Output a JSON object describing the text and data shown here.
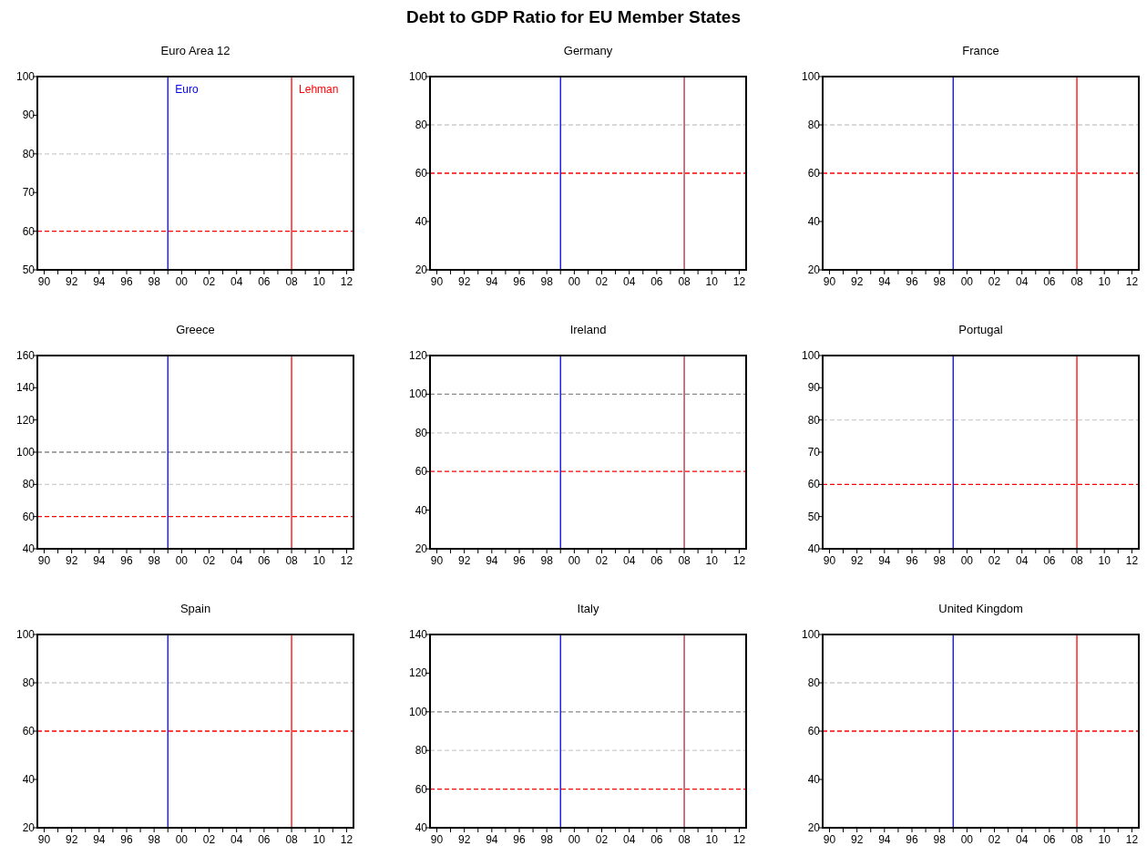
{
  "chart_data": [
    {
      "type": "line",
      "title": "Euro Area 12",
      "annotations": [
        "Debt to GDP Ratio for EU Member States"
      ],
      "xlim": [
        "1990-01-01",
        "2013-01-01"
      ],
      "xticks": [
        {
          "value": "1990-07-01",
          "label": "90"
        },
        {
          "value": "1991-07-01",
          "label": null
        },
        {
          "value": "1992-07-01",
          "label": "92"
        },
        {
          "value": "1993-07-01",
          "label": null
        },
        {
          "value": "1994-07-01",
          "label": "94"
        },
        {
          "value": "1995-07-01",
          "label": null
        },
        {
          "value": "1996-07-01",
          "label": "96"
        },
        {
          "value": "1997-07-01",
          "label": null
        },
        {
          "value": "1998-07-01",
          "label": "98"
        },
        {
          "value": "1999-07-01",
          "label": null
        },
        {
          "value": "2000-07-01",
          "label": "00"
        },
        {
          "value": "2001-07-01",
          "label": null
        },
        {
          "value": "2002-07-01",
          "label": "02"
        },
        {
          "value": "2003-07-01",
          "label": null
        },
        {
          "value": "2004-07-01",
          "label": "04"
        },
        {
          "value": "2005-07-01",
          "label": null
        },
        {
          "value": "2006-07-01",
          "label": "06"
        },
        {
          "value": "2007-07-01",
          "label": null
        },
        {
          "value": "2008-07-01",
          "label": "08"
        },
        {
          "value": "2009-07-01",
          "label": null
        },
        {
          "value": "2010-07-01",
          "label": "10"
        },
        {
          "value": "2011-07-01",
          "label": null
        },
        {
          "value": "2012-07-01",
          "label": "12"
        }
      ],
      "ylim": [
        50,
        100
      ],
      "yticks": [
        50,
        60,
        70,
        80,
        90,
        100
      ],
      "ref_lines": [
        {
          "axis": "y",
          "value": 60,
          "color": "#ff0000",
          "line_style": "dashed"
        },
        {
          "axis": "y",
          "value": 80,
          "color": "#cccccc",
          "line_style": "dashed"
        },
        {
          "axis": "x",
          "value": "1999-07-01",
          "label": "Euro",
          "color": "#0000ff",
          "line_style": "solid"
        },
        {
          "axis": "x",
          "value": "2008-07-01",
          "label": "Lehman",
          "color": "#ff0000",
          "line_style": "solid"
        }
      ]
    },
    {
      "type": "line",
      "title": "Germany",
      "xlim": [
        "1990-01-01",
        "2013-01-01"
      ],
      "xticks": [
        {
          "value": "1990-07-01",
          "label": "90"
        },
        {
          "value": "1991-07-01",
          "label": null
        },
        {
          "value": "1992-07-01",
          "label": "92"
        },
        {
          "value": "1993-07-01",
          "label": null
        },
        {
          "value": "1994-07-01",
          "label": "94"
        },
        {
          "value": "1995-07-01",
          "label": null
        },
        {
          "value": "1996-07-01",
          "label": "96"
        },
        {
          "value": "1997-07-01",
          "label": null
        },
        {
          "value": "1998-07-01",
          "label": "98"
        },
        {
          "value": "1999-07-01",
          "label": null
        },
        {
          "value": "2000-07-01",
          "label": "00"
        },
        {
          "value": "2001-07-01",
          "label": null
        },
        {
          "value": "2002-07-01",
          "label": "02"
        },
        {
          "value": "2003-07-01",
          "label": null
        },
        {
          "value": "2004-07-01",
          "label": "04"
        },
        {
          "value": "2005-07-01",
          "label": null
        },
        {
          "value": "2006-07-01",
          "label": "06"
        },
        {
          "value": "2007-07-01",
          "label": null
        },
        {
          "value": "2008-07-01",
          "label": "08"
        },
        {
          "value": "2009-07-01",
          "label": null
        },
        {
          "value": "2010-07-01",
          "label": "10"
        },
        {
          "value": "2011-07-01",
          "label": null
        },
        {
          "value": "2012-07-01",
          "label": "12"
        }
      ],
      "ylim": [
        20,
        100
      ],
      "yticks": [
        20,
        40,
        60,
        80,
        100
      ],
      "ref_lines": [
        {
          "axis": "y",
          "value": 60,
          "color": "#ff0000",
          "line_style": "dashed"
        },
        {
          "axis": "y",
          "value": 80,
          "color": "#cccccc",
          "line_style": "dashed"
        },
        {
          "axis": "x",
          "value": "1999-07-01",
          "color": "#0000ff",
          "line_style": "solid"
        },
        {
          "axis": "x",
          "value": "2008-07-01",
          "color": "#993344",
          "line_style": "solid"
        }
      ]
    },
    {
      "type": "line",
      "title": "France",
      "xlim": [
        "1990-01-01",
        "2013-01-01"
      ],
      "xticks": [
        {
          "value": "1990-07-01",
          "label": "90"
        },
        {
          "value": "1991-07-01",
          "label": null
        },
        {
          "value": "1992-07-01",
          "label": "92"
        },
        {
          "value": "1993-07-01",
          "label": null
        },
        {
          "value": "1994-07-01",
          "label": "94"
        },
        {
          "value": "1995-07-01",
          "label": null
        },
        {
          "value": "1996-07-01",
          "label": "96"
        },
        {
          "value": "1997-07-01",
          "label": null
        },
        {
          "value": "1998-07-01",
          "label": "98"
        },
        {
          "value": "1999-07-01",
          "label": null
        },
        {
          "value": "2000-07-01",
          "label": "00"
        },
        {
          "value": "2001-07-01",
          "label": null
        },
        {
          "value": "2002-07-01",
          "label": "02"
        },
        {
          "value": "2003-07-01",
          "label": null
        },
        {
          "value": "2004-07-01",
          "label": "04"
        },
        {
          "value": "2005-07-01",
          "label": null
        },
        {
          "value": "2006-07-01",
          "label": "06"
        },
        {
          "value": "2007-07-01",
          "label": null
        },
        {
          "value": "2008-07-01",
          "label": "08"
        },
        {
          "value": "2009-07-01",
          "label": null
        },
        {
          "value": "2010-07-01",
          "label": "10"
        },
        {
          "value": "2011-07-01",
          "label": null
        },
        {
          "value": "2012-07-01",
          "label": "12"
        }
      ],
      "ylim": [
        20,
        100
      ],
      "yticks": [
        20,
        40,
        60,
        80,
        100
      ],
      "ref_lines": [
        {
          "axis": "y",
          "value": 60,
          "color": "#ff0000",
          "line_style": "dashed"
        },
        {
          "axis": "y",
          "value": 80,
          "color": "#cccccc",
          "line_style": "dashed"
        },
        {
          "axis": "x",
          "value": "1999-07-01",
          "color": "#0000ff",
          "line_style": "solid"
        },
        {
          "axis": "x",
          "value": "2008-07-01",
          "color": "#ff0000",
          "line_style": "solid"
        }
      ]
    },
    {
      "type": "line",
      "title": "Greece",
      "xlim": [
        "1990-01-01",
        "2013-01-01"
      ],
      "xticks": [
        {
          "value": "1990-07-01",
          "label": "90"
        },
        {
          "value": "1991-07-01",
          "label": null
        },
        {
          "value": "1992-07-01",
          "label": "92"
        },
        {
          "value": "1993-07-01",
          "label": null
        },
        {
          "value": "1994-07-01",
          "label": "94"
        },
        {
          "value": "1995-07-01",
          "label": null
        },
        {
          "value": "1996-07-01",
          "label": "96"
        },
        {
          "value": "1997-07-01",
          "label": null
        },
        {
          "value": "1998-07-01",
          "label": "98"
        },
        {
          "value": "1999-07-01",
          "label": null
        },
        {
          "value": "2000-07-01",
          "label": "00"
        },
        {
          "value": "2001-07-01",
          "label": null
        },
        {
          "value": "2002-07-01",
          "label": "02"
        },
        {
          "value": "2003-07-01",
          "label": null
        },
        {
          "value": "2004-07-01",
          "label": "04"
        },
        {
          "value": "2005-07-01",
          "label": null
        },
        {
          "value": "2006-07-01",
          "label": "06"
        },
        {
          "value": "2007-07-01",
          "label": null
        },
        {
          "value": "2008-07-01",
          "label": "08"
        },
        {
          "value": "2009-07-01",
          "label": null
        },
        {
          "value": "2010-07-01",
          "label": "10"
        },
        {
          "value": "2011-07-01",
          "label": null
        },
        {
          "value": "2012-07-01",
          "label": "12"
        }
      ],
      "ylim": [
        40,
        160
      ],
      "yticks": [
        40,
        60,
        80,
        100,
        120,
        140,
        160
      ],
      "ref_lines": [
        {
          "axis": "y",
          "value": 60,
          "color": "#ff0000",
          "line_style": "dashed"
        },
        {
          "axis": "y",
          "value": 80,
          "color": "#cccccc",
          "line_style": "dashed"
        },
        {
          "axis": "y",
          "value": 100,
          "color": "#888888",
          "line_style": "dashed"
        },
        {
          "axis": "x",
          "value": "1999-07-01",
          "color": "#0000ff",
          "line_style": "solid"
        },
        {
          "axis": "x",
          "value": "2008-07-01",
          "color": "#ff0000",
          "line_style": "solid"
        }
      ]
    },
    {
      "type": "line",
      "title": "Ireland",
      "xlim": [
        "1990-01-01",
        "2013-01-01"
      ],
      "xticks": [
        {
          "value": "1990-07-01",
          "label": "90"
        },
        {
          "value": "1991-07-01",
          "label": null
        },
        {
          "value": "1992-07-01",
          "label": "92"
        },
        {
          "value": "1993-07-01",
          "label": null
        },
        {
          "value": "1994-07-01",
          "label": "94"
        },
        {
          "value": "1995-07-01",
          "label": null
        },
        {
          "value": "1996-07-01",
          "label": "96"
        },
        {
          "value": "1997-07-01",
          "label": null
        },
        {
          "value": "1998-07-01",
          "label": "98"
        },
        {
          "value": "1999-07-01",
          "label": null
        },
        {
          "value": "2000-07-01",
          "label": "00"
        },
        {
          "value": "2001-07-01",
          "label": null
        },
        {
          "value": "2002-07-01",
          "label": "02"
        },
        {
          "value": "2003-07-01",
          "label": null
        },
        {
          "value": "2004-07-01",
          "label": "04"
        },
        {
          "value": "2005-07-01",
          "label": null
        },
        {
          "value": "2006-07-01",
          "label": "06"
        },
        {
          "value": "2007-07-01",
          "label": null
        },
        {
          "value": "2008-07-01",
          "label": "08"
        },
        {
          "value": "2009-07-01",
          "label": null
        },
        {
          "value": "2010-07-01",
          "label": "10"
        },
        {
          "value": "2011-07-01",
          "label": null
        },
        {
          "value": "2012-07-01",
          "label": "12"
        }
      ],
      "ylim": [
        20,
        120
      ],
      "yticks": [
        20,
        40,
        60,
        80,
        100,
        120
      ],
      "ref_lines": [
        {
          "axis": "y",
          "value": 60,
          "color": "#ff0000",
          "line_style": "dashed"
        },
        {
          "axis": "y",
          "value": 80,
          "color": "#cccccc",
          "line_style": "dashed"
        },
        {
          "axis": "y",
          "value": 100,
          "color": "#888888",
          "line_style": "dashed"
        },
        {
          "axis": "x",
          "value": "1999-07-01",
          "color": "#0000ff",
          "line_style": "solid"
        },
        {
          "axis": "x",
          "value": "2008-07-01",
          "color": "#993344",
          "line_style": "solid"
        }
      ]
    },
    {
      "type": "line",
      "title": "Portugal",
      "xlim": [
        "1990-01-01",
        "2013-01-01"
      ],
      "xticks": [
        {
          "value": "1990-07-01",
          "label": "90"
        },
        {
          "value": "1991-07-01",
          "label": null
        },
        {
          "value": "1992-07-01",
          "label": "92"
        },
        {
          "value": "1993-07-01",
          "label": null
        },
        {
          "value": "1994-07-01",
          "label": "94"
        },
        {
          "value": "1995-07-01",
          "label": null
        },
        {
          "value": "1996-07-01",
          "label": "96"
        },
        {
          "value": "1997-07-01",
          "label": null
        },
        {
          "value": "1998-07-01",
          "label": "98"
        },
        {
          "value": "1999-07-01",
          "label": null
        },
        {
          "value": "2000-07-01",
          "label": "00"
        },
        {
          "value": "2001-07-01",
          "label": null
        },
        {
          "value": "2002-07-01",
          "label": "02"
        },
        {
          "value": "2003-07-01",
          "label": null
        },
        {
          "value": "2004-07-01",
          "label": "04"
        },
        {
          "value": "2005-07-01",
          "label": null
        },
        {
          "value": "2006-07-01",
          "label": "06"
        },
        {
          "value": "2007-07-01",
          "label": null
        },
        {
          "value": "2008-07-01",
          "label": "08"
        },
        {
          "value": "2009-07-01",
          "label": null
        },
        {
          "value": "2010-07-01",
          "label": "10"
        },
        {
          "value": "2011-07-01",
          "label": null
        },
        {
          "value": "2012-07-01",
          "label": "12"
        }
      ],
      "ylim": [
        40,
        100
      ],
      "yticks": [
        40,
        50,
        60,
        70,
        80,
        90,
        100
      ],
      "ref_lines": [
        {
          "axis": "y",
          "value": 60,
          "color": "#ff0000",
          "line_style": "dashed"
        },
        {
          "axis": "y",
          "value": 80,
          "color": "#cccccc",
          "line_style": "dashed"
        },
        {
          "axis": "x",
          "value": "1999-07-01",
          "color": "#0000ff",
          "line_style": "solid"
        },
        {
          "axis": "x",
          "value": "2008-07-01",
          "color": "#ff0000",
          "line_style": "solid"
        }
      ]
    },
    {
      "type": "line",
      "title": "Spain",
      "xlim": [
        "1990-01-01",
        "2013-01-01"
      ],
      "xticks": [
        {
          "value": "1990-07-01",
          "label": "90"
        },
        {
          "value": "1991-07-01",
          "label": null
        },
        {
          "value": "1992-07-01",
          "label": "92"
        },
        {
          "value": "1993-07-01",
          "label": null
        },
        {
          "value": "1994-07-01",
          "label": "94"
        },
        {
          "value": "1995-07-01",
          "label": null
        },
        {
          "value": "1996-07-01",
          "label": "96"
        },
        {
          "value": "1997-07-01",
          "label": null
        },
        {
          "value": "1998-07-01",
          "label": "98"
        },
        {
          "value": "1999-07-01",
          "label": null
        },
        {
          "value": "2000-07-01",
          "label": "00"
        },
        {
          "value": "2001-07-01",
          "label": null
        },
        {
          "value": "2002-07-01",
          "label": "02"
        },
        {
          "value": "2003-07-01",
          "label": null
        },
        {
          "value": "2004-07-01",
          "label": "04"
        },
        {
          "value": "2005-07-01",
          "label": null
        },
        {
          "value": "2006-07-01",
          "label": "06"
        },
        {
          "value": "2007-07-01",
          "label": null
        },
        {
          "value": "2008-07-01",
          "label": "08"
        },
        {
          "value": "2009-07-01",
          "label": null
        },
        {
          "value": "2010-07-01",
          "label": "10"
        },
        {
          "value": "2011-07-01",
          "label": null
        },
        {
          "value": "2012-07-01",
          "label": "12"
        }
      ],
      "ylim": [
        20,
        100
      ],
      "yticks": [
        20,
        40,
        60,
        80,
        100
      ],
      "ref_lines": [
        {
          "axis": "y",
          "value": 60,
          "color": "#ff0000",
          "line_style": "dashed"
        },
        {
          "axis": "y",
          "value": 80,
          "color": "#cccccc",
          "line_style": "dashed"
        },
        {
          "axis": "x",
          "value": "1999-07-01",
          "color": "#0000ff",
          "line_style": "solid"
        },
        {
          "axis": "x",
          "value": "2008-07-01",
          "color": "#ff0000",
          "line_style": "solid"
        }
      ]
    },
    {
      "type": "line",
      "title": "Italy",
      "xlim": [
        "1990-01-01",
        "2013-01-01"
      ],
      "xticks": [
        {
          "value": "1990-07-01",
          "label": "90"
        },
        {
          "value": "1991-07-01",
          "label": null
        },
        {
          "value": "1992-07-01",
          "label": "92"
        },
        {
          "value": "1993-07-01",
          "label": null
        },
        {
          "value": "1994-07-01",
          "label": "94"
        },
        {
          "value": "1995-07-01",
          "label": null
        },
        {
          "value": "1996-07-01",
          "label": "96"
        },
        {
          "value": "1997-07-01",
          "label": null
        },
        {
          "value": "1998-07-01",
          "label": "98"
        },
        {
          "value": "1999-07-01",
          "label": null
        },
        {
          "value": "2000-07-01",
          "label": "00"
        },
        {
          "value": "2001-07-01",
          "label": null
        },
        {
          "value": "2002-07-01",
          "label": "02"
        },
        {
          "value": "2003-07-01",
          "label": null
        },
        {
          "value": "2004-07-01",
          "label": "04"
        },
        {
          "value": "2005-07-01",
          "label": null
        },
        {
          "value": "2006-07-01",
          "label": "06"
        },
        {
          "value": "2007-07-01",
          "label": null
        },
        {
          "value": "2008-07-01",
          "label": "08"
        },
        {
          "value": "2009-07-01",
          "label": null
        },
        {
          "value": "2010-07-01",
          "label": "10"
        },
        {
          "value": "2011-07-01",
          "label": null
        },
        {
          "value": "2012-07-01",
          "label": "12"
        }
      ],
      "ylim": [
        40,
        140
      ],
      "yticks": [
        40,
        60,
        80,
        100,
        120,
        140
      ],
      "ref_lines": [
        {
          "axis": "y",
          "value": 60,
          "color": "#ff0000",
          "line_style": "dashed"
        },
        {
          "axis": "y",
          "value": 80,
          "color": "#cccccc",
          "line_style": "dashed"
        },
        {
          "axis": "y",
          "value": 100,
          "color": "#888888",
          "line_style": "dashed"
        },
        {
          "axis": "x",
          "value": "1999-07-01",
          "color": "#0000ff",
          "line_style": "solid"
        },
        {
          "axis": "x",
          "value": "2008-07-01",
          "color": "#993344",
          "line_style": "solid"
        }
      ]
    },
    {
      "type": "line",
      "title": "United  Kingdom",
      "xlim": [
        "1990-01-01",
        "2013-01-01"
      ],
      "xticks": [
        {
          "value": "1990-07-01",
          "label": "90"
        },
        {
          "value": "1991-07-01",
          "label": null
        },
        {
          "value": "1992-07-01",
          "label": "92"
        },
        {
          "value": "1993-07-01",
          "label": null
        },
        {
          "value": "1994-07-01",
          "label": "94"
        },
        {
          "value": "1995-07-01",
          "label": null
        },
        {
          "value": "1996-07-01",
          "label": "96"
        },
        {
          "value": "1997-07-01",
          "label": null
        },
        {
          "value": "1998-07-01",
          "label": "98"
        },
        {
          "value": "1999-07-01",
          "label": null
        },
        {
          "value": "2000-07-01",
          "label": "00"
        },
        {
          "value": "2001-07-01",
          "label": null
        },
        {
          "value": "2002-07-01",
          "label": "02"
        },
        {
          "value": "2003-07-01",
          "label": null
        },
        {
          "value": "2004-07-01",
          "label": "04"
        },
        {
          "value": "2005-07-01",
          "label": null
        },
        {
          "value": "2006-07-01",
          "label": "06"
        },
        {
          "value": "2007-07-01",
          "label": null
        },
        {
          "value": "2008-07-01",
          "label": "08"
        },
        {
          "value": "2009-07-01",
          "label": null
        },
        {
          "value": "2010-07-01",
          "label": "10"
        },
        {
          "value": "2011-07-01",
          "label": null
        },
        {
          "value": "2012-07-01",
          "label": "12"
        }
      ],
      "ylim": [
        20,
        100
      ],
      "yticks": [
        20,
        40,
        60,
        80,
        100
      ],
      "ref_lines": [
        {
          "axis": "y",
          "value": 60,
          "color": "#ff0000",
          "line_style": "dashed"
        },
        {
          "axis": "y",
          "value": 80,
          "color": "#cccccc",
          "line_style": "dashed"
        },
        {
          "axis": "x",
          "value": "1999-07-01",
          "color": "#0000ff",
          "line_style": "solid"
        },
        {
          "axis": "x",
          "value": "2008-07-01",
          "color": "#ff0000",
          "line_style": "solid"
        }
      ]
    }
  ]
}
